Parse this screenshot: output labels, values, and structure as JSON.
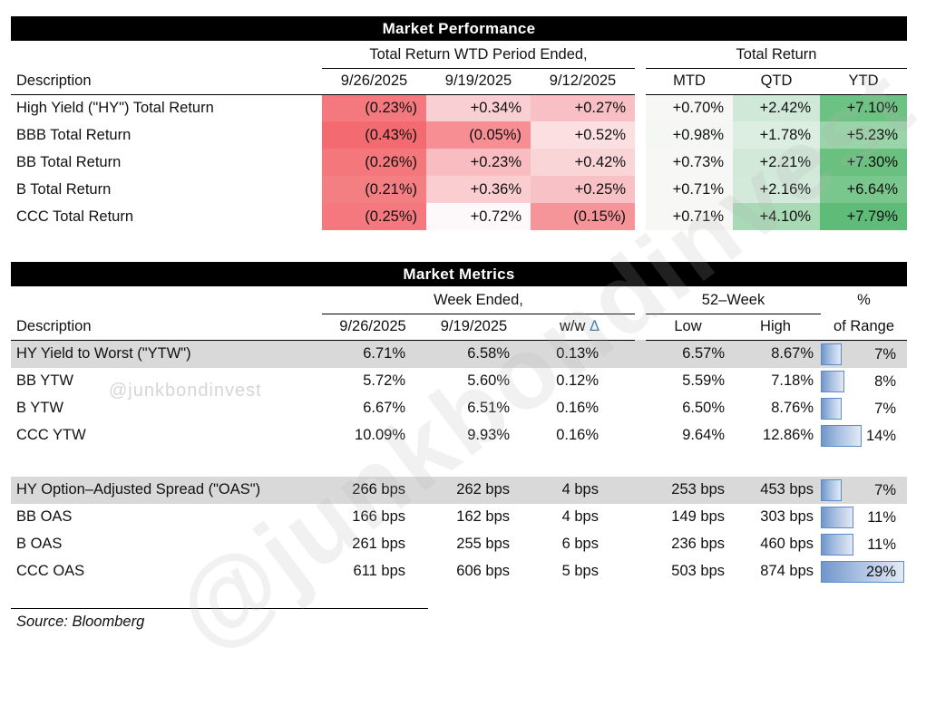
{
  "watermark": {
    "text": "@junkbondinvest"
  },
  "perf_table": {
    "title": "Market Performance",
    "group_headers": [
      "Total Return WTD Period Ended,",
      "Total Return"
    ],
    "col_headers": [
      "Description",
      "9/26/2025",
      "9/19/2025",
      "9/12/2025",
      "MTD",
      "QTD",
      "YTD"
    ],
    "rows": [
      {
        "label": "High Yield (\"HY\") Total Return",
        "cells": [
          {
            "text": "(0.23%)",
            "bg": "#F4797E"
          },
          {
            "text": "+0.34%",
            "bg": "#FACFD3"
          },
          {
            "text": "+0.27%",
            "bg": "#F8BFC4"
          },
          {
            "text": "+0.70%",
            "bg": "#F7F8F6"
          },
          {
            "text": "+2.42%",
            "bg": "#CFE8D8"
          },
          {
            "text": "+7.10%",
            "bg": "#6CC282"
          }
        ]
      },
      {
        "label": "BBB Total Return",
        "cells": [
          {
            "text": "(0.43%)",
            "bg": "#F36B70"
          },
          {
            "text": "(0.05%)",
            "bg": "#F68E93"
          },
          {
            "text": "+0.52%",
            "bg": "#FBDFE1"
          },
          {
            "text": "+0.98%",
            "bg": "#F5F7F4"
          },
          {
            "text": "+1.78%",
            "bg": "#DCEEE2"
          },
          {
            "text": "+5.23%",
            "bg": "#9AD4A9"
          }
        ]
      },
      {
        "label": "BB Total Return",
        "cells": [
          {
            "text": "(0.26%)",
            "bg": "#F4777C"
          },
          {
            "text": "+0.23%",
            "bg": "#F9BCC0"
          },
          {
            "text": "+0.42%",
            "bg": "#FAD5D8"
          },
          {
            "text": "+0.73%",
            "bg": "#F7F8F6"
          },
          {
            "text": "+2.21%",
            "bg": "#D2E9DA"
          },
          {
            "text": "+7.30%",
            "bg": "#69C07F"
          }
        ]
      },
      {
        "label": "B Total Return",
        "cells": [
          {
            "text": "(0.21%)",
            "bg": "#F47F83"
          },
          {
            "text": "+0.36%",
            "bg": "#FACDD0"
          },
          {
            "text": "+0.25%",
            "bg": "#F8C1C5"
          },
          {
            "text": "+0.71%",
            "bg": "#F7F8F6"
          },
          {
            "text": "+2.16%",
            "bg": "#D3EADB"
          },
          {
            "text": "+6.64%",
            "bg": "#7AC78D"
          }
        ]
      },
      {
        "label": "CCC Total Return",
        "cells": [
          {
            "text": "(0.25%)",
            "bg": "#F4787D"
          },
          {
            "text": "+0.72%",
            "bg": "#FDF8F9"
          },
          {
            "text": "(0.15%)",
            "bg": "#F69599"
          },
          {
            "text": "+0.71%",
            "bg": "#F7F8F6"
          },
          {
            "text": "+4.10%",
            "bg": "#A9DAB6"
          },
          {
            "text": "+7.79%",
            "bg": "#5FBC78"
          }
        ]
      }
    ]
  },
  "metrics_table": {
    "title": "Market Metrics",
    "group_headers": [
      "Week Ended,",
      "52–Week",
      "%"
    ],
    "col_headers": [
      "Description",
      "9/26/2025",
      "9/19/2025",
      "Low",
      "High",
      "of Range"
    ],
    "ww_label": "w/w",
    "delta_symbol": "Δ",
    "bar_color": "#5E8AC7",
    "shaded_row_color": "#D9D9D9",
    "ytw_rows": [
      {
        "label": "HY Yield to Worst (\"YTW\")",
        "shaded": true,
        "values": [
          "6.71%",
          "6.58%",
          "0.13%",
          "6.57%",
          "8.67%"
        ],
        "range_pct": 7
      },
      {
        "label": "BB YTW",
        "shaded": false,
        "values": [
          "5.72%",
          "5.60%",
          "0.12%",
          "5.59%",
          "7.18%"
        ],
        "range_pct": 8
      },
      {
        "label": "B YTW",
        "shaded": false,
        "values": [
          "6.67%",
          "6.51%",
          "0.16%",
          "6.50%",
          "8.76%"
        ],
        "range_pct": 7
      },
      {
        "label": "CCC YTW",
        "shaded": false,
        "values": [
          "10.09%",
          "9.93%",
          "0.16%",
          "9.64%",
          "12.86%"
        ],
        "range_pct": 14
      }
    ],
    "oas_rows": [
      {
        "label": "HY Option–Adjusted Spread (\"OAS\")",
        "shaded": true,
        "values": [
          "266 bps",
          "262 bps",
          "4 bps",
          "253 bps",
          "453 bps"
        ],
        "range_pct": 7
      },
      {
        "label": "BB OAS",
        "shaded": false,
        "values": [
          "166 bps",
          "162 bps",
          "4 bps",
          "149 bps",
          "303 bps"
        ],
        "range_pct": 11
      },
      {
        "label": "B OAS",
        "shaded": false,
        "values": [
          "261 bps",
          "255 bps",
          "6 bps",
          "236 bps",
          "460 bps"
        ],
        "range_pct": 11
      },
      {
        "label": "CCC OAS",
        "shaded": false,
        "values": [
          "611 bps",
          "606 bps",
          "5 bps",
          "503 bps",
          "874 bps"
        ],
        "range_pct": 29
      }
    ]
  },
  "footer": {
    "source": "Source: Bloomberg"
  }
}
